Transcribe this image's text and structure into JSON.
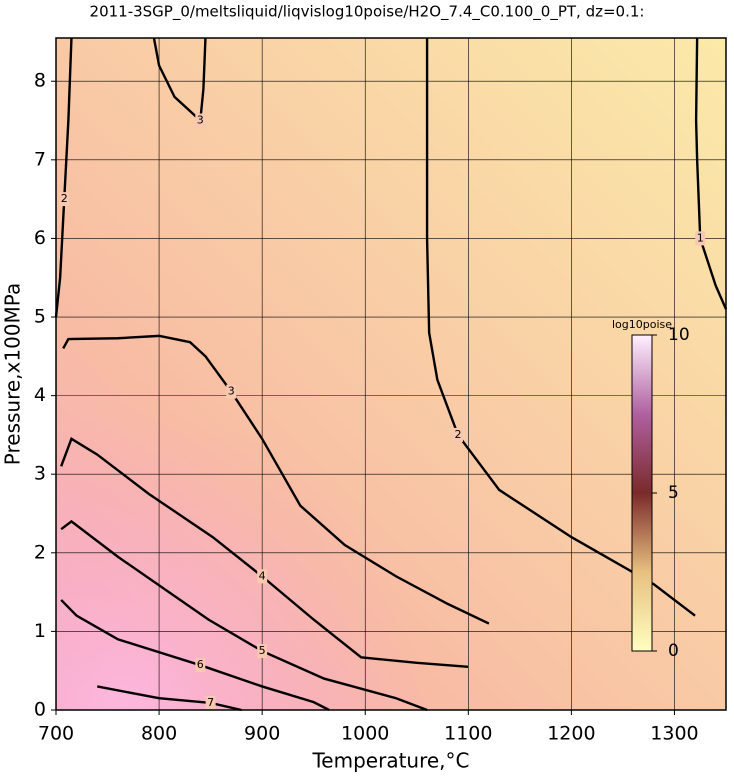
{
  "chart_data": {
    "type": "contour",
    "title": "2011-3SGP_0/meltsliquid/liqvislog10poise/H2O_7.4_C0.100_0_PT, dz=0.1:",
    "x_label": "Temperature,°C",
    "y_label": "Pressure,x100MPa",
    "xlim": [
      700,
      1350
    ],
    "ylim": [
      0,
      8.55
    ],
    "xticks": [
      700,
      800,
      900,
      1000,
      1100,
      1200,
      1300
    ],
    "yticks": [
      0,
      1,
      2,
      3,
      4,
      5,
      6,
      7,
      8
    ],
    "grid": true,
    "contours": [
      {
        "level": 1,
        "x": [
          1322,
          1321,
          1322,
          1325,
          1340,
          1350
        ],
        "y": [
          8.55,
          7.5,
          7.0,
          6.0,
          5.4,
          5.1
        ]
      },
      {
        "level": 2,
        "x": [
          1060,
          1060,
          1062,
          1070,
          1090,
          1130,
          1200,
          1280,
          1320
        ],
        "y": [
          8.55,
          6.0,
          4.8,
          4.2,
          3.5,
          2.8,
          2.2,
          1.6,
          1.2
        ]
      },
      {
        "level": 2,
        "x": [
          715,
          712,
          708,
          704,
          700
        ],
        "y": [
          8.55,
          7.5,
          6.5,
          5.5,
          5.0
        ]
      },
      {
        "level": 3,
        "x": [
          795,
          800,
          815,
          840,
          843,
          845
        ],
        "y": [
          8.55,
          8.2,
          7.8,
          7.5,
          7.9,
          8.55
        ]
      },
      {
        "level": 3,
        "x": [
          707,
          712,
          760,
          800,
          830,
          845,
          870,
          900,
          937,
          980,
          1030,
          1080,
          1120
        ],
        "y": [
          4.6,
          4.72,
          4.73,
          4.76,
          4.68,
          4.5,
          4.05,
          3.45,
          2.6,
          2.1,
          1.7,
          1.35,
          1.1
        ]
      },
      {
        "level": 4,
        "x": [
          705,
          715,
          740,
          790,
          852,
          900,
          950,
          996,
          1050,
          1100
        ],
        "y": [
          3.1,
          3.45,
          3.25,
          2.75,
          2.2,
          1.7,
          1.15,
          0.67,
          0.6,
          0.55
        ]
      },
      {
        "level": 5,
        "x": [
          705,
          715,
          760,
          848,
          900,
          960,
          1030,
          1060
        ],
        "y": [
          2.3,
          2.4,
          1.95,
          1.15,
          0.75,
          0.4,
          0.15,
          0
        ]
      },
      {
        "level": 6,
        "x": [
          705,
          720,
          760,
          840,
          900,
          950,
          965
        ],
        "y": [
          1.4,
          1.2,
          0.9,
          0.57,
          0.3,
          0.1,
          0
        ]
      },
      {
        "level": 7,
        "x": [
          740,
          800,
          850,
          880
        ],
        "y": [
          0.3,
          0.15,
          0.09,
          0
        ]
      }
    ],
    "colorbar": {
      "label": "log10poise",
      "lim": [
        0,
        10
      ],
      "ticks": [
        0,
        5,
        10
      ]
    }
  }
}
